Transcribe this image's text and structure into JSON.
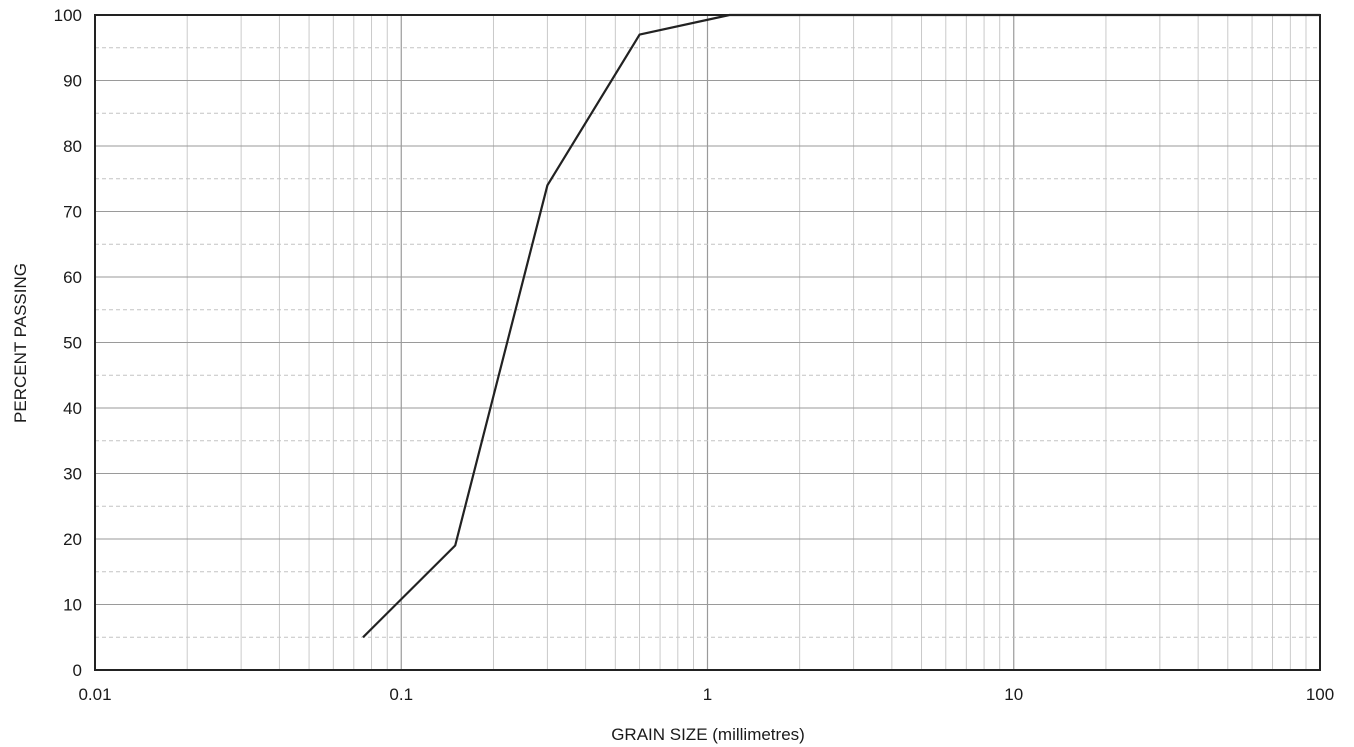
{
  "chart_data": {
    "type": "line",
    "xlabel": "GRAIN SIZE (millimetres)",
    "ylabel": "PERCENT PASSING",
    "x_scale": "log",
    "xlim": [
      0.01,
      100
    ],
    "ylim": [
      0,
      100
    ],
    "x_tick_labels": [
      "0.01",
      "0.1",
      "1",
      "10",
      "100"
    ],
    "y_tick_labels": [
      "0",
      "10",
      "20",
      "30",
      "40",
      "50",
      "60",
      "70",
      "80",
      "90",
      "100"
    ],
    "grid": true,
    "series": [
      {
        "x": [
          0.075,
          0.15,
          0.3,
          0.6,
          1.18,
          2.36,
          4.75,
          10,
          100
        ],
        "y": [
          5,
          19,
          74,
          97,
          100,
          100,
          100,
          100,
          100
        ]
      }
    ]
  },
  "colors": {
    "curve": "#222222",
    "frame": "#222222",
    "grid_major": "#9a9a9a",
    "grid_minor": "#c4c4c4"
  }
}
